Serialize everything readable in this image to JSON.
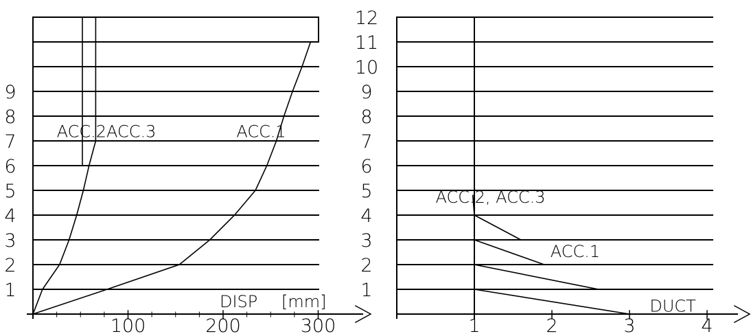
{
  "colors": {
    "ink": "#000000",
    "paper": "#ffffff"
  },
  "chart_data": [
    {
      "type": "line",
      "xlabel": "DISP",
      "xunit": "[mm]",
      "xlim": [
        0,
        300
      ],
      "x_ticks": [
        "100",
        "200",
        "300"
      ],
      "x_tick_values": [
        100,
        200,
        300
      ],
      "floor_labels": [
        "1",
        "2",
        "3",
        "4",
        "5",
        "6",
        "7",
        "8",
        "9"
      ],
      "floor_values": [
        1,
        2,
        3,
        4,
        5,
        6,
        7,
        8,
        9
      ],
      "ylim": [
        0,
        12
      ],
      "grid": true,
      "series": [
        {
          "name": "ACC.1",
          "points": [
            [
              0,
              0
            ],
            [
              78,
              1
            ],
            [
              154,
              2
            ],
            [
              186,
              3
            ],
            [
              212,
              4
            ],
            [
              234,
              5
            ],
            [
              246,
              6
            ],
            [
              256,
              7
            ],
            [
              264,
              8
            ],
            [
              273,
              9
            ],
            [
              283,
              10
            ],
            [
              292,
              11
            ]
          ]
        },
        {
          "name": "ACC.2ACC.3",
          "points": [
            [
              0,
              0
            ],
            [
              10,
              1
            ],
            [
              28,
              2
            ],
            [
              38,
              3
            ],
            [
              46,
              4
            ],
            [
              53,
              5
            ],
            [
              59,
              6
            ],
            [
              66,
              7
            ],
            [
              66,
              8
            ],
            [
              66,
              9
            ],
            [
              66,
              10
            ],
            [
              66,
              11
            ],
            [
              66,
              12
            ]
          ]
        },
        {
          "name": "ACC.2",
          "points": [
            [
              52,
              12
            ],
            [
              52,
              6
            ]
          ]
        }
      ],
      "annotations": [
        {
          "text": "ACC.2ACC.3",
          "x": 25,
          "y": 7.15
        },
        {
          "text": "ACC.1",
          "x": 214,
          "y": 7.15
        }
      ]
    },
    {
      "type": "line",
      "xlabel": "DUCT",
      "xlim": [
        0,
        4.2
      ],
      "x_ticks": [
        "1",
        "2",
        "3",
        "4"
      ],
      "x_tick_values": [
        1,
        2,
        3,
        4
      ],
      "floor_labels": [
        "1",
        "2",
        "3",
        "4",
        "5",
        "6",
        "7",
        "8",
        "9",
        "10",
        "11",
        "12"
      ],
      "floor_values": [
        1,
        2,
        3,
        4,
        5,
        6,
        7,
        8,
        9,
        10,
        11,
        12
      ],
      "ylim": [
        0,
        12
      ],
      "grid": true,
      "series": [
        {
          "name": "DUCT",
          "points": [
            [
              1,
              1
            ],
            [
              3,
              0
            ]
          ]
        },
        {
          "name": "",
          "points": [
            [
              1,
              2
            ],
            [
              2.6,
              1
            ]
          ]
        },
        {
          "name": "ACC.1",
          "points": [
            [
              1,
              3
            ],
            [
              1.9,
              2
            ]
          ]
        },
        {
          "name": "ACC.2, ACC.3",
          "points": [
            [
              1,
              4
            ],
            [
              1.6,
              3
            ]
          ]
        },
        {
          "name": "",
          "points": [
            [
              1,
              4
            ],
            [
              0.98,
              4.8
            ]
          ]
        }
      ],
      "annotations": [
        {
          "text": "ACC.2, ACC.3",
          "x": 0.5,
          "y": 4.5
        },
        {
          "text": "ACC.1",
          "x": 1.98,
          "y": 2.3
        },
        {
          "text": "DUCT",
          "x": 3.26,
          "y": 0.1
        }
      ]
    }
  ]
}
